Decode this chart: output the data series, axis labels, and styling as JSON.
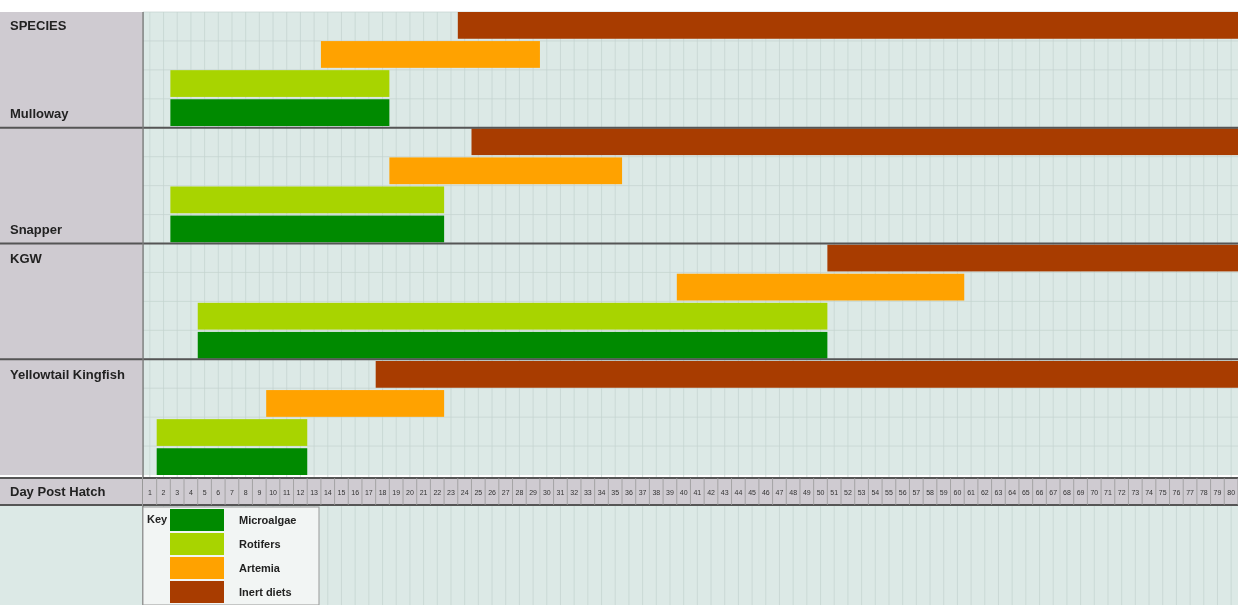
{
  "chart_data": {
    "type": "bar",
    "orientation": "horizontal",
    "xlabel": "Day Post Hatch",
    "legend_title": "Key",
    "legend": "bottom left",
    "grid": true,
    "categories": [
      "SPECIES",
      null,
      null,
      "Mulloway",
      null,
      null,
      null,
      "Snapper",
      "KGW",
      null,
      null,
      null,
      "Yellowtail Kingfish",
      null,
      null,
      null
    ],
    "xlim": [
      0.5,
      80.5
    ],
    "xticks": [
      1,
      2,
      3,
      4,
      5,
      6,
      7,
      8,
      9,
      10,
      11,
      12,
      13,
      14,
      15,
      16,
      17,
      18,
      19,
      20,
      21,
      22,
      23,
      24,
      25,
      26,
      27,
      28,
      29,
      30,
      31,
      32,
      33,
      34,
      35,
      36,
      37,
      38,
      39,
      40,
      41,
      42,
      43,
      44,
      45,
      46,
      47,
      48,
      49,
      50,
      51,
      52,
      53,
      54,
      55,
      56,
      57,
      58,
      59,
      60,
      61,
      62,
      63,
      64,
      65,
      66,
      67,
      68,
      69,
      70,
      71,
      72,
      73,
      74,
      75,
      76,
      77,
      78,
      79,
      80
    ],
    "series": [
      {
        "name": "Microalgae",
        "color": "#008a00",
        "base": [
          null,
          null,
          null,
          2.5,
          null,
          null,
          null,
          2.5,
          null,
          null,
          null,
          4.5,
          null,
          null,
          null,
          1.5
        ],
        "values": [
          null,
          null,
          null,
          16,
          null,
          null,
          null,
          20,
          null,
          null,
          null,
          46,
          null,
          null,
          null,
          11
        ]
      },
      {
        "name": "Rotifers",
        "color": "#a8d400",
        "base": [
          null,
          null,
          2.5,
          null,
          null,
          null,
          2.5,
          null,
          null,
          null,
          4.5,
          null,
          null,
          null,
          1.5,
          null
        ],
        "values": [
          null,
          null,
          16,
          null,
          null,
          null,
          20,
          null,
          null,
          null,
          46,
          null,
          null,
          null,
          11,
          null
        ]
      },
      {
        "name": "Artemia",
        "color": "#ffa200",
        "base": [
          null,
          13.5,
          null,
          null,
          null,
          18.5,
          null,
          null,
          null,
          39.5,
          null,
          null,
          null,
          9.5,
          null,
          null
        ],
        "values": [
          null,
          16,
          null,
          null,
          null,
          17,
          null,
          null,
          null,
          21,
          null,
          null,
          null,
          13,
          null,
          null
        ]
      },
      {
        "name": "Inert diets",
        "color": "#a83c00",
        "base": [
          23.5,
          null,
          null,
          null,
          24.5,
          null,
          null,
          null,
          50.5,
          null,
          null,
          null,
          17.5,
          null,
          null,
          null
        ],
        "values": [
          57,
          null,
          null,
          null,
          56,
          null,
          null,
          null,
          30,
          null,
          null,
          null,
          63,
          null,
          null,
          null
        ]
      }
    ]
  }
}
